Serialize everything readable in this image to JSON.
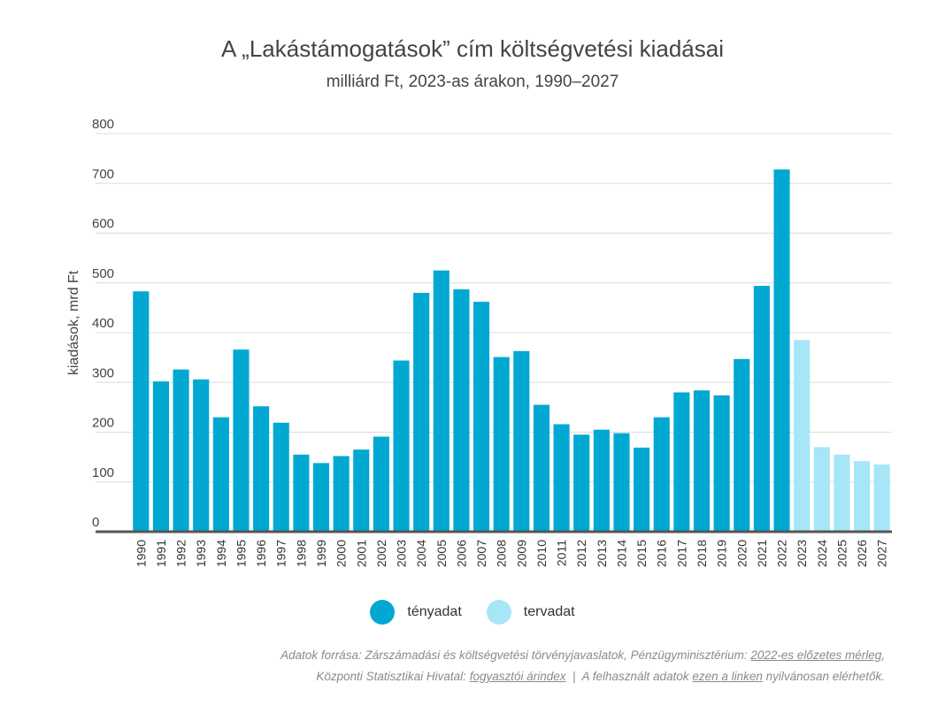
{
  "title": "A „Lakástámogatások” cím költségvetési kiadásai",
  "subtitle": "milliárd Ft, 2023-as árakon, 1990–2027",
  "colors": {
    "actual": "#00a8d2",
    "planned": "#a6e6f6",
    "axis": "#555555",
    "grid": "#dddddd"
  },
  "legend": [
    {
      "label": "tényadat",
      "color": "#00a8d2"
    },
    {
      "label": "tervadat",
      "color": "#a6e6f6"
    }
  ],
  "source": {
    "line1_prefix": "Adatok forrása: Zárszámadási és költségvetési törvényjavaslatok, Pénzügyminisztérium: ",
    "line1_link": "2022-es előzetes mérleg",
    "line1_suffix": ",",
    "line2_prefix": "Központi Statisztikai Hivatal: ",
    "line2_link1": "fogyasztói árindex",
    "line2_middle": "  |  A felhasznált adatok ",
    "line2_link2": "ezen a linken",
    "line2_suffix": " nyilvánosan elérhetők."
  },
  "chart_data": {
    "type": "bar",
    "ylabel": "kiadások, mrd Ft",
    "xlabel": "",
    "ylim": [
      0,
      800
    ],
    "yticks": [
      0,
      100,
      200,
      300,
      400,
      500,
      600,
      700,
      800
    ],
    "grid": true,
    "legend_position": "bottom",
    "categories": [
      "1990",
      "1991",
      "1992",
      "1993",
      "1994",
      "1995",
      "1996",
      "1997",
      "1998",
      "1999",
      "2000",
      "2001",
      "2002",
      "2003",
      "2004",
      "2005",
      "2006",
      "2007",
      "2008",
      "2009",
      "2010",
      "2011",
      "2012",
      "2013",
      "2014",
      "2015",
      "2016",
      "2017",
      "2018",
      "2019",
      "2020",
      "2021",
      "2022",
      "2023",
      "2024",
      "2025",
      "2026",
      "2027"
    ],
    "values": [
      483,
      302,
      326,
      306,
      230,
      366,
      252,
      219,
      155,
      138,
      152,
      165,
      191,
      344,
      480,
      525,
      487,
      462,
      351,
      363,
      255,
      216,
      195,
      205,
      198,
      169,
      230,
      280,
      284,
      274,
      347,
      494,
      728,
      385,
      170,
      155,
      142,
      135
    ],
    "series_type": [
      "tényadat",
      "tényadat",
      "tényadat",
      "tényadat",
      "tényadat",
      "tényadat",
      "tényadat",
      "tényadat",
      "tényadat",
      "tényadat",
      "tényadat",
      "tényadat",
      "tényadat",
      "tényadat",
      "tényadat",
      "tényadat",
      "tényadat",
      "tényadat",
      "tényadat",
      "tényadat",
      "tényadat",
      "tényadat",
      "tényadat",
      "tényadat",
      "tényadat",
      "tényadat",
      "tényadat",
      "tényadat",
      "tényadat",
      "tényadat",
      "tényadat",
      "tényadat",
      "tényadat",
      "tervadat",
      "tervadat",
      "tervadat",
      "tervadat",
      "tervadat"
    ]
  }
}
